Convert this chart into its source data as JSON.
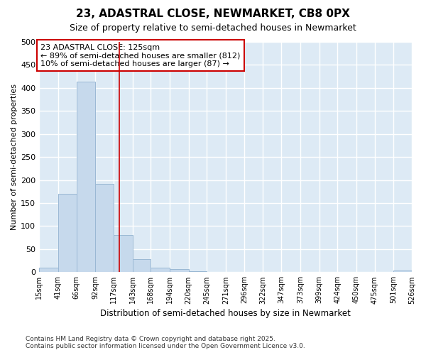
{
  "title": "23, ADASTRAL CLOSE, NEWMARKET, CB8 0PX",
  "subtitle": "Size of property relative to semi-detached houses in Newmarket",
  "xlabel": "Distribution of semi-detached houses by size in Newmarket",
  "ylabel": "Number of semi-detached properties",
  "property_label": "23 ADASTRAL CLOSE: 125sqm",
  "annotation_line1": "← 89% of semi-detached houses are smaller (812)",
  "annotation_line2": "10% of semi-detached houses are larger (87) →",
  "bin_edges": [
    15,
    41,
    66,
    92,
    117,
    143,
    168,
    194,
    220,
    245,
    271,
    296,
    322,
    347,
    373,
    399,
    424,
    450,
    475,
    501,
    526
  ],
  "bar_heights": [
    9,
    170,
    413,
    192,
    80,
    28,
    9,
    7,
    2,
    1,
    1,
    1,
    0,
    0,
    0,
    0,
    0,
    0,
    0,
    3
  ],
  "bar_color": "#c6d9ec",
  "bar_edgecolor": "#9ab8d4",
  "vline_color": "#cc0000",
  "vline_x": 125,
  "box_edgecolor": "#cc0000",
  "ylim": [
    0,
    500
  ],
  "xlim": [
    15,
    526
  ],
  "grid_color": "#ffffff",
  "bg_color": "#ddeaf5",
  "fig_bg_color": "#ffffff",
  "footer_line1": "Contains HM Land Registry data © Crown copyright and database right 2025.",
  "footer_line2": "Contains public sector information licensed under the Open Government Licence v3.0.",
  "tick_labels": [
    "15sqm",
    "41sqm",
    "66sqm",
    "92sqm",
    "117sqm",
    "143sqm",
    "168sqm",
    "194sqm",
    "220sqm",
    "245sqm",
    "271sqm",
    "296sqm",
    "322sqm",
    "347sqm",
    "373sqm",
    "399sqm",
    "424sqm",
    "450sqm",
    "475sqm",
    "501sqm",
    "526sqm"
  ]
}
